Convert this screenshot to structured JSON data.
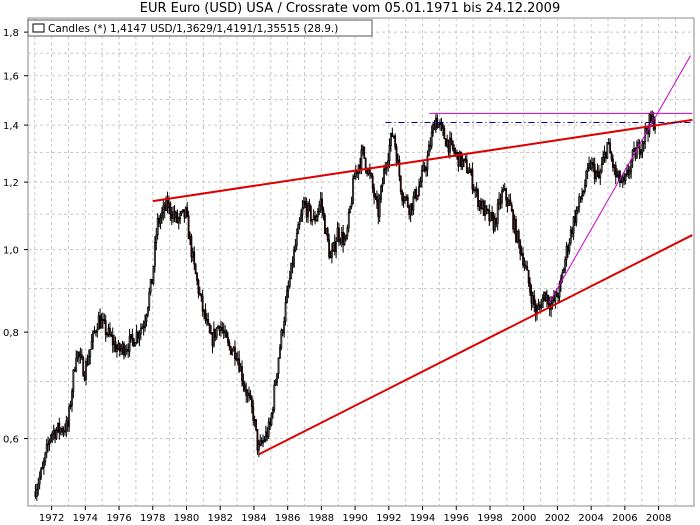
{
  "chart_data": {
    "type": "candlestick",
    "title": "EUR Euro (USD) USA / Crossrate vom 05.01.1971 bis 24.12.2009",
    "legend": {
      "entry": "Candles (*) 1,4147 USD/1,3629/1,4191/1,35515 (28.9.)",
      "placement": "top-left"
    },
    "y_scale": "log",
    "ylim": [
      0.5,
      1.87
    ],
    "xlim": [
      1970.6,
      2010.1
    ],
    "yticks": [
      {
        "value": 0.6,
        "label": "0,6"
      },
      {
        "value": 0.8,
        "label": "0,8"
      },
      {
        "value": 1.0,
        "label": "1,0"
      },
      {
        "value": 1.2,
        "label": "1,2"
      },
      {
        "value": 1.4,
        "label": "1,4"
      },
      {
        "value": 1.6,
        "label": "1,6"
      },
      {
        "value": 1.8,
        "label": "1,8"
      }
    ],
    "xticks": [
      {
        "value": 1972,
        "label": "1972"
      },
      {
        "value": 1974,
        "label": "1974"
      },
      {
        "value": 1976,
        "label": "1976"
      },
      {
        "value": 1978,
        "label": "1978"
      },
      {
        "value": 1980,
        "label": "1980"
      },
      {
        "value": 1982,
        "label": "1982"
      },
      {
        "value": 1984,
        "label": "1984"
      },
      {
        "value": 1986,
        "label": "1986"
      },
      {
        "value": 1988,
        "label": "1988"
      },
      {
        "value": 1990,
        "label": "1990"
      },
      {
        "value": 1992,
        "label": "1992"
      },
      {
        "value": 1994,
        "label": "1994"
      },
      {
        "value": 1996,
        "label": "1996"
      },
      {
        "value": 1998,
        "label": "1998"
      },
      {
        "value": 2000,
        "label": "2000"
      },
      {
        "value": 2002,
        "label": "2002"
      },
      {
        "value": 2004,
        "label": "2004"
      },
      {
        "value": 2006,
        "label": "2006"
      },
      {
        "value": 2008,
        "label": "2008"
      }
    ],
    "grid": true,
    "colors": {
      "up_candle": "#ffffff",
      "down_candle": "#cc0000",
      "candle_outline": "#000000",
      "trendline": "#dd0000",
      "fan_line": "#cc00cc",
      "resistance_dashdot": "#000080",
      "grid": "#c8c8c8"
    },
    "series_anchors": [
      [
        1971.0,
        0.52
      ],
      [
        1971.5,
        0.55
      ],
      [
        1972.0,
        0.61
      ],
      [
        1973.0,
        0.62
      ],
      [
        1973.5,
        0.76
      ],
      [
        1974.0,
        0.72
      ],
      [
        1974.8,
        0.83
      ],
      [
        1975.5,
        0.79
      ],
      [
        1976.0,
        0.76
      ],
      [
        1976.8,
        0.78
      ],
      [
        1977.5,
        0.82
      ],
      [
        1978.0,
        0.92
      ],
      [
        1978.3,
        1.07
      ],
      [
        1978.9,
        1.13
      ],
      [
        1979.5,
        1.08
      ],
      [
        1980.0,
        1.1
      ],
      [
        1980.5,
        0.95
      ],
      [
        1981.0,
        0.85
      ],
      [
        1981.5,
        0.78
      ],
      [
        1982.0,
        0.82
      ],
      [
        1982.5,
        0.77
      ],
      [
        1983.0,
        0.76
      ],
      [
        1983.5,
        0.69
      ],
      [
        1984.0,
        0.64
      ],
      [
        1984.3,
        0.58
      ],
      [
        1985.0,
        0.62
      ],
      [
        1985.5,
        0.75
      ],
      [
        1986.0,
        0.88
      ],
      [
        1986.5,
        1.01
      ],
      [
        1987.0,
        1.13
      ],
      [
        1987.6,
        1.08
      ],
      [
        1988.0,
        1.14
      ],
      [
        1988.6,
        0.97
      ],
      [
        1989.0,
        1.05
      ],
      [
        1989.5,
        1.02
      ],
      [
        1990.0,
        1.22
      ],
      [
        1990.5,
        1.3
      ],
      [
        1991.0,
        1.2
      ],
      [
        1991.4,
        1.1
      ],
      [
        1991.8,
        1.25
      ],
      [
        1992.3,
        1.38
      ],
      [
        1992.8,
        1.17
      ],
      [
        1993.3,
        1.12
      ],
      [
        1993.8,
        1.18
      ],
      [
        1994.3,
        1.27
      ],
      [
        1994.8,
        1.43
      ],
      [
        1995.3,
        1.36
      ],
      [
        1995.8,
        1.31
      ],
      [
        1996.3,
        1.27
      ],
      [
        1996.8,
        1.24
      ],
      [
        1997.3,
        1.15
      ],
      [
        1997.8,
        1.1
      ],
      [
        1998.3,
        1.07
      ],
      [
        1998.8,
        1.17
      ],
      [
        1999.2,
        1.13
      ],
      [
        1999.6,
        1.04
      ],
      [
        2000.0,
        0.98
      ],
      [
        2000.4,
        0.9
      ],
      [
        2000.8,
        0.84
      ],
      [
        2001.3,
        0.89
      ],
      [
        2001.7,
        0.86
      ],
      [
        2002.2,
        0.9
      ],
      [
        2002.6,
        1.0
      ],
      [
        2003.0,
        1.08
      ],
      [
        2003.5,
        1.16
      ],
      [
        2004.0,
        1.26
      ],
      [
        2004.5,
        1.21
      ],
      [
        2005.0,
        1.33
      ],
      [
        2005.5,
        1.22
      ],
      [
        2006.0,
        1.19
      ],
      [
        2006.5,
        1.28
      ],
      [
        2007.0,
        1.33
      ],
      [
        2007.5,
        1.41
      ],
      [
        2007.75,
        1.415
      ]
    ],
    "trendlines": [
      {
        "kind": "red-upper",
        "points": [
          [
            1978.0,
            1.14
          ],
          [
            2010.0,
            1.42
          ]
        ]
      },
      {
        "kind": "red-lower",
        "points": [
          [
            1984.3,
            0.575
          ],
          [
            2010.0,
            1.04
          ]
        ]
      },
      {
        "kind": "magenta-fan",
        "points": [
          [
            2001.5,
            0.865
          ],
          [
            2009.9,
            1.69
          ]
        ]
      },
      {
        "kind": "magenta-resistance",
        "points": [
          [
            1994.4,
            1.445
          ],
          [
            2010.0,
            1.445
          ]
        ]
      },
      {
        "kind": "dashdot-resistance",
        "points": [
          [
            1991.8,
            1.41
          ],
          [
            2010.0,
            1.41
          ]
        ]
      }
    ]
  }
}
